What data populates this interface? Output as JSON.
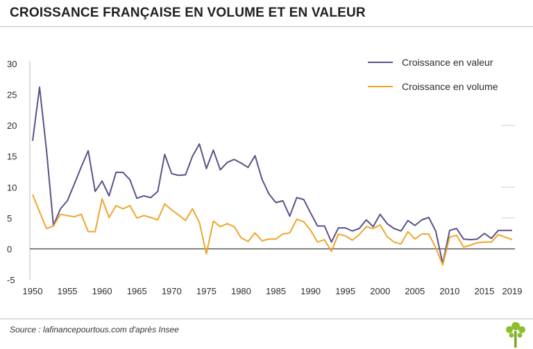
{
  "title": "CROISSANCE FRANÇAISE EN VOLUME ET EN VALEUR",
  "source": "Source : lafinancepourtous.com d'après Insee",
  "colors": {
    "valeur": "#5b5088",
    "volume": "#f0a52a",
    "axis": "#2b2b2b",
    "grid": "#cfcfcf"
  },
  "chart_data": {
    "type": "line",
    "title": "CROISSANCE FRANÇAISE EN VOLUME ET EN VALEUR",
    "xlabel": "",
    "ylabel": "",
    "xlim": [
      1950,
      2019
    ],
    "ylim": [
      -5,
      30
    ],
    "yticks": [
      30,
      25,
      20,
      15,
      10,
      5,
      0,
      -5
    ],
    "xticks": [
      1950,
      1955,
      1960,
      1965,
      1970,
      1975,
      1980,
      1985,
      1990,
      1995,
      2000,
      2005,
      2010,
      2015,
      2019
    ],
    "legend_position": "top-right",
    "x": [
      1950,
      1951,
      1952,
      1953,
      1954,
      1955,
      1956,
      1957,
      1958,
      1959,
      1960,
      1961,
      1962,
      1963,
      1964,
      1965,
      1966,
      1967,
      1968,
      1969,
      1970,
      1971,
      1972,
      1973,
      1974,
      1975,
      1976,
      1977,
      1978,
      1979,
      1980,
      1981,
      1982,
      1983,
      1984,
      1985,
      1986,
      1987,
      1988,
      1989,
      1990,
      1991,
      1992,
      1993,
      1994,
      1995,
      1996,
      1997,
      1998,
      1999,
      2000,
      2001,
      2002,
      2003,
      2004,
      2005,
      2006,
      2007,
      2008,
      2009,
      2010,
      2011,
      2012,
      2013,
      2014,
      2015,
      2016,
      2017,
      2018,
      2019
    ],
    "series": [
      {
        "name": "Croissance en valeur",
        "values": [
          17.5,
          26.2,
          16.0,
          3.8,
          6.5,
          7.8,
          10.5,
          13.3,
          15.9,
          9.3,
          11.0,
          8.6,
          12.4,
          12.4,
          11.2,
          8.2,
          8.6,
          8.3,
          9.3,
          15.3,
          12.2,
          11.9,
          12.0,
          15.0,
          17.0,
          13.0,
          16.0,
          12.8,
          14.0,
          14.5,
          13.9,
          13.2,
          15.1,
          11.3,
          8.9,
          7.5,
          7.8,
          5.3,
          8.3,
          8.0,
          5.8,
          3.7,
          3.7,
          1.1,
          3.4,
          3.4,
          2.9,
          3.3,
          4.7,
          3.6,
          5.6,
          4.1,
          3.3,
          2.9,
          4.6,
          3.8,
          4.7,
          5.1,
          2.9,
          -2.4,
          3.0,
          3.3,
          1.6,
          1.5,
          1.6,
          2.5,
          1.7,
          3.0,
          3.0,
          3.0
        ]
      },
      {
        "name": "Croissance en volume",
        "values": [
          8.8,
          6.0,
          3.3,
          3.7,
          5.6,
          5.4,
          5.2,
          5.6,
          2.8,
          2.8,
          8.1,
          5.1,
          7.0,
          6.5,
          7.0,
          5.0,
          5.4,
          5.1,
          4.7,
          7.3,
          6.3,
          5.5,
          4.6,
          6.5,
          4.3,
          -0.8,
          4.5,
          3.6,
          4.1,
          3.6,
          1.8,
          1.2,
          2.6,
          1.3,
          1.6,
          1.6,
          2.4,
          2.6,
          4.8,
          4.4,
          3.0,
          1.1,
          1.5,
          -0.4,
          2.4,
          2.1,
          1.4,
          2.3,
          3.6,
          3.3,
          3.9,
          2.0,
          1.1,
          0.8,
          2.8,
          1.6,
          2.4,
          2.4,
          0.2,
          -2.6,
          1.9,
          2.2,
          0.3,
          0.6,
          1.0,
          1.1,
          1.1,
          2.3,
          1.9,
          1.5
        ]
      }
    ]
  }
}
